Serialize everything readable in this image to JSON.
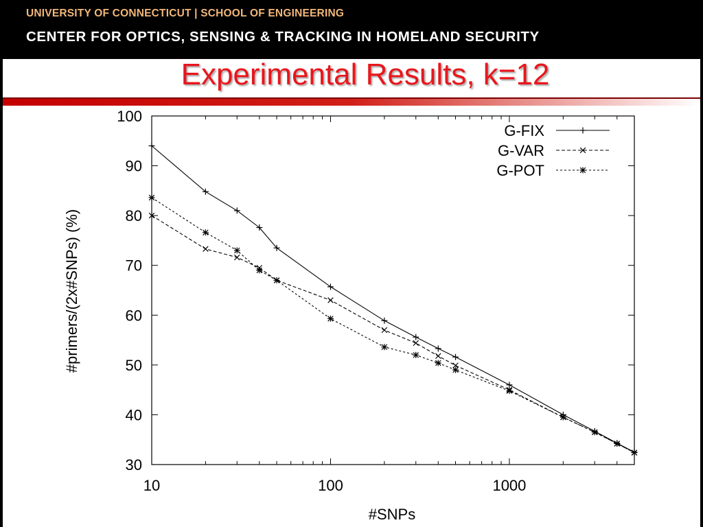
{
  "header": {
    "line1": "UNIVERSITY OF CONNECTICUT  |  SCHOOL OF ENGINEERING",
    "line2": "CENTER FOR OPTICS, SENSING & TRACKING IN HOMELAND SECURITY"
  },
  "slide": {
    "title": "Experimental Results, k=12"
  },
  "colors": {
    "banner": "#000000",
    "title": "#e8161c",
    "rule": "#c40000",
    "line1": "#f2b77a"
  },
  "chart_data": {
    "type": "line",
    "xlabel": "#SNPs",
    "ylabel": "#primers/(2x#SNPs) (%)",
    "xscale": "log",
    "xlim": [
      10,
      5000
    ],
    "ylim": [
      30,
      100
    ],
    "xticks": [
      10,
      100,
      1000
    ],
    "xtick_labels": [
      "10",
      "100",
      "1000"
    ],
    "yticks": [
      30,
      40,
      50,
      60,
      70,
      80,
      90,
      100
    ],
    "ytick_labels": [
      "30",
      "40",
      "50",
      "60",
      "70",
      "80",
      "90",
      "100"
    ],
    "legend": "top-right",
    "grid": false,
    "x": [
      10,
      20,
      30,
      40,
      50,
      100,
      200,
      300,
      400,
      500,
      1000,
      2000,
      3000,
      4000,
      5000
    ],
    "series": [
      {
        "name": "G-FIX",
        "marker": "+",
        "dash": "solid",
        "values": [
          94,
          84.8,
          81,
          77.6,
          73.5,
          65.7,
          58.9,
          55.6,
          53.3,
          51.6,
          46,
          40,
          36.7,
          34.3,
          32.5
        ]
      },
      {
        "name": "G-VAR",
        "marker": "x",
        "dash": "dashed",
        "values": [
          80,
          73.3,
          71.6,
          69.5,
          67,
          63,
          57,
          54.4,
          51.8,
          49.9,
          45,
          39.5,
          36.5,
          34.2,
          32.4
        ]
      },
      {
        "name": "G-POT",
        "marker": "*",
        "dash": "dotted",
        "values": [
          83.6,
          76.6,
          73,
          69,
          67,
          59.3,
          53.6,
          52,
          50.4,
          49,
          44.8,
          39.5,
          36.5,
          34.2,
          32.4
        ]
      }
    ]
  }
}
